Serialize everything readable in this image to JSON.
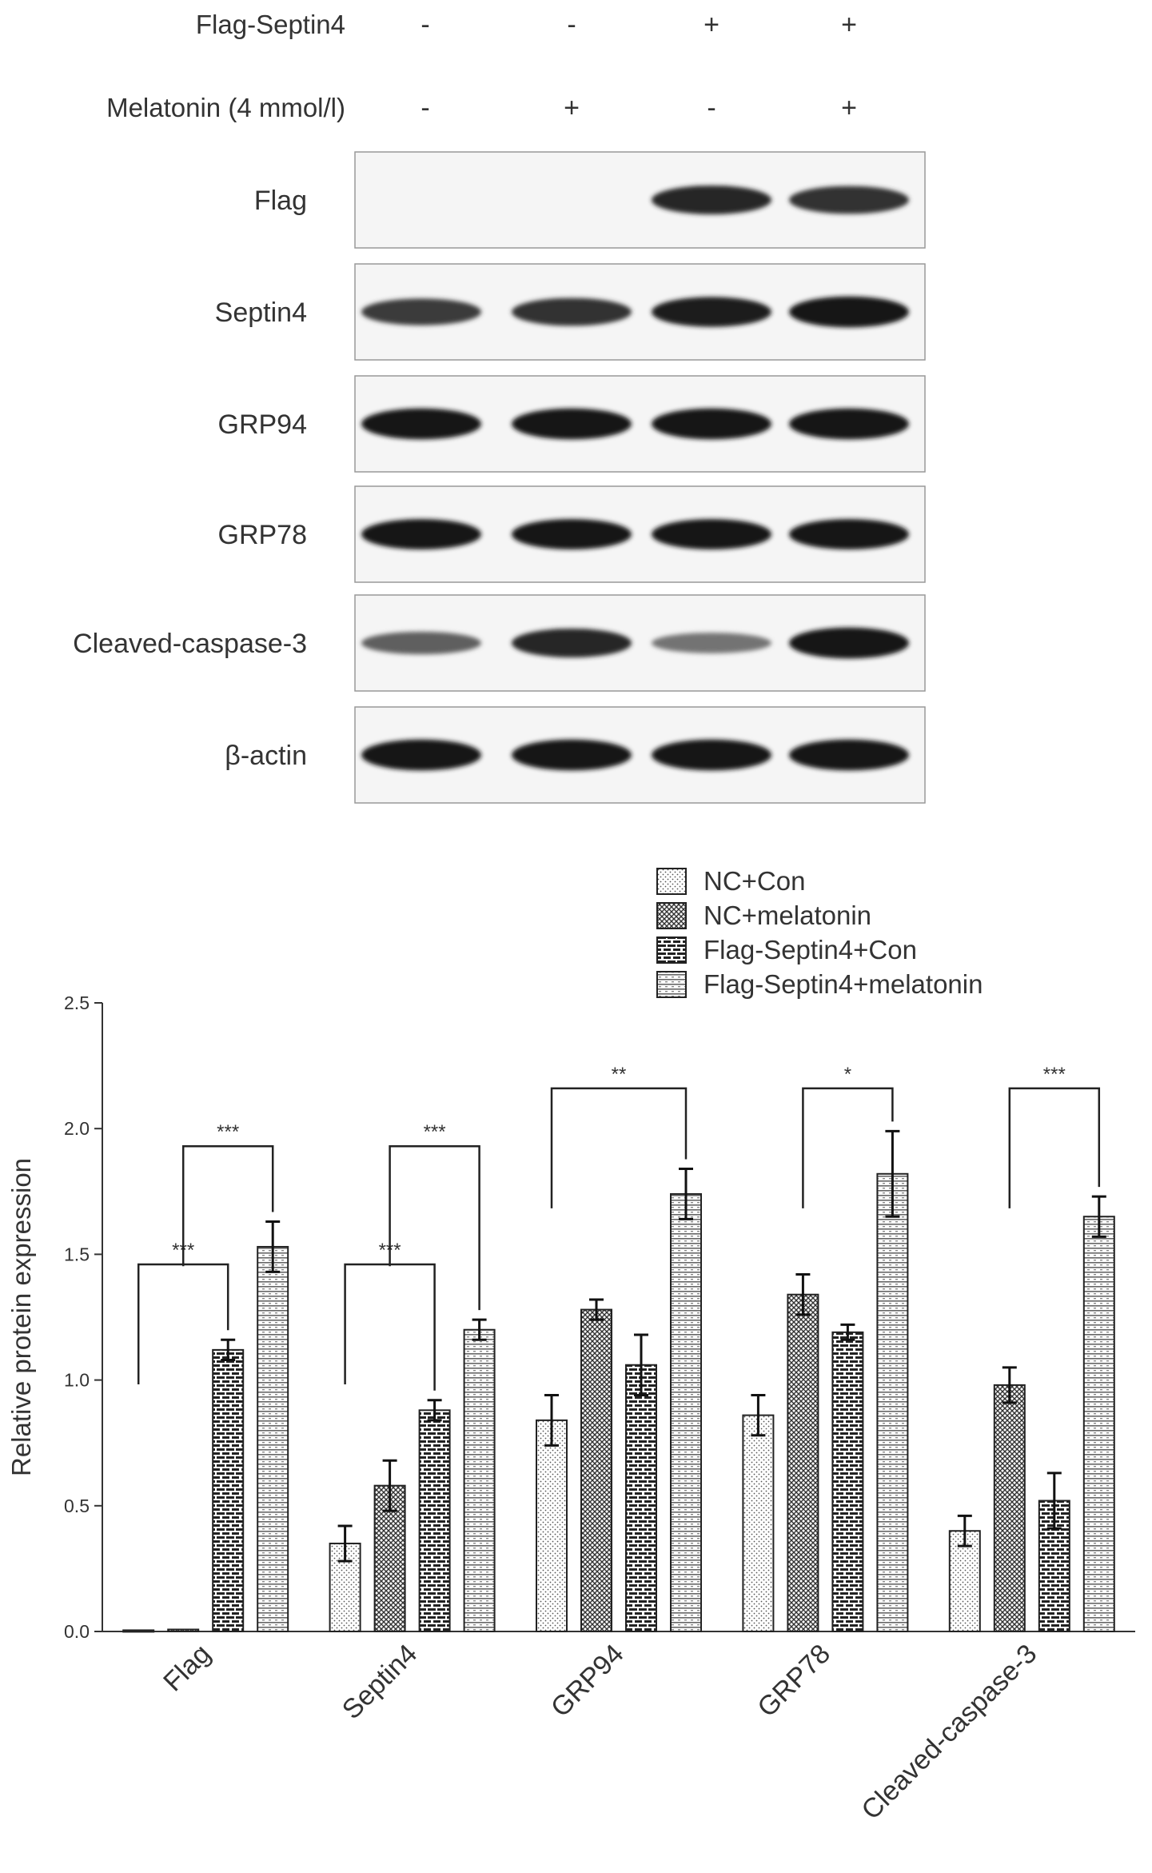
{
  "blot": {
    "treatments": [
      {
        "label": "Flag-Septin4",
        "values": [
          "-",
          "-",
          "+",
          "+"
        ]
      },
      {
        "label": "Melatonin (4 mmol/l)",
        "values": [
          "-",
          "+",
          "-",
          "+"
        ]
      }
    ],
    "rows": [
      {
        "label": "Flag",
        "intensity": [
          0.0,
          0.0,
          0.85,
          0.8
        ]
      },
      {
        "label": "Septin4",
        "intensity": [
          0.75,
          0.8,
          0.9,
          0.95
        ]
      },
      {
        "label": "GRP94",
        "intensity": [
          0.95,
          0.95,
          0.95,
          0.95
        ]
      },
      {
        "label": "GRP78",
        "intensity": [
          0.92,
          0.92,
          0.92,
          0.92
        ]
      },
      {
        "label": "Cleaved-caspase-3",
        "intensity": [
          0.55,
          0.85,
          0.45,
          0.95
        ]
      },
      {
        "label": "β-actin",
        "intensity": [
          0.95,
          0.95,
          0.95,
          0.95
        ]
      }
    ]
  },
  "chart_data": {
    "type": "bar",
    "ylabel": "Relative protein expression",
    "ylim": [
      0,
      2.5
    ],
    "yticks": [
      "0.0",
      "0.5",
      "1.0",
      "1.5",
      "2.0",
      "2.5"
    ],
    "categories": [
      "Flag",
      "Septin4",
      "GRP94",
      "GRP78",
      "Cleaved-caspase-3"
    ],
    "series": [
      {
        "name": "NC+Con",
        "pattern": "dots",
        "values": [
          0.005,
          0.35,
          0.84,
          0.86,
          0.4
        ],
        "errors": [
          0.003,
          0.07,
          0.1,
          0.08,
          0.06
        ]
      },
      {
        "name": "NC+melatonin",
        "pattern": "cross",
        "values": [
          0.008,
          0.58,
          1.28,
          1.34,
          0.98
        ],
        "errors": [
          0.003,
          0.1,
          0.04,
          0.08,
          0.07
        ]
      },
      {
        "name": "Flag-Septin4+Con",
        "pattern": "brick",
        "values": [
          1.12,
          0.88,
          1.06,
          1.19,
          0.52
        ],
        "errors": [
          0.04,
          0.04,
          0.12,
          0.03,
          0.11
        ]
      },
      {
        "name": "Flag-Septin4+melatonin",
        "pattern": "hstripe",
        "values": [
          1.53,
          1.2,
          1.74,
          1.82,
          1.65
        ],
        "errors": [
          0.1,
          0.04,
          0.1,
          0.17,
          0.08
        ]
      }
    ],
    "significance": [
      {
        "category": 0,
        "from": 0,
        "to": 2,
        "label": "***",
        "y": 1.46
      },
      {
        "category": 0,
        "from": 1,
        "to": 3,
        "label": "***",
        "y": 1.93
      },
      {
        "category": 1,
        "from": 0,
        "to": 2,
        "label": "***",
        "y": 1.46
      },
      {
        "category": 1,
        "from": 1,
        "to": 3,
        "label": "***",
        "y": 1.93
      },
      {
        "category": 2,
        "from": 0,
        "to": 3,
        "label": "**",
        "y": 2.16
      },
      {
        "category": 3,
        "from": 1,
        "to": 3,
        "label": "*",
        "y": 2.16
      },
      {
        "category": 4,
        "from": 1,
        "to": 3,
        "label": "***",
        "y": 2.16
      }
    ],
    "legend_position": "top-right",
    "grid": false
  }
}
